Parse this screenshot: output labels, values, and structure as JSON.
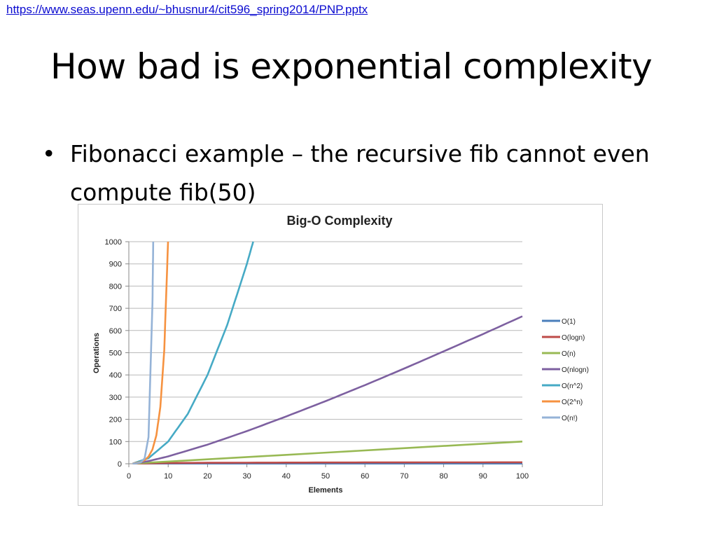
{
  "header": {
    "source_link": "https://www.seas.upenn.edu/~bhusnur4/cit596_spring2014/PNP.pptx"
  },
  "slide": {
    "title": "How bad is exponential complexity",
    "bullets": [
      {
        "marker": "•",
        "text": "Fibonacci example – the recursive fib cannot even compute fib(50)"
      }
    ]
  },
  "chart_data": {
    "type": "line",
    "title": "Big-O Complexity",
    "xlabel": "Elements",
    "ylabel": "Operations",
    "xlim": [
      0,
      100
    ],
    "ylim": [
      0,
      1000
    ],
    "xticks": [
      0,
      10,
      20,
      30,
      40,
      50,
      60,
      70,
      80,
      90,
      100
    ],
    "yticks": [
      0,
      100,
      200,
      300,
      400,
      500,
      600,
      700,
      800,
      900,
      1000
    ],
    "grid": true,
    "legend_position": "right",
    "series": [
      {
        "name": "O(1)",
        "color": "#4a7ebb",
        "x": [
          1,
          100
        ],
        "y": [
          1,
          1
        ]
      },
      {
        "name": "O(logn)",
        "color": "#be4b48",
        "x": [
          1,
          10,
          20,
          40,
          60,
          80,
          100
        ],
        "y": [
          0,
          3.3,
          4.3,
          5.3,
          5.9,
          6.3,
          6.6
        ]
      },
      {
        "name": "O(n)",
        "color": "#98b954",
        "x": [
          1,
          100
        ],
        "y": [
          1,
          100
        ]
      },
      {
        "name": "O(nlogn)",
        "color": "#7d60a0",
        "x": [
          1,
          5,
          10,
          20,
          30,
          40,
          50,
          60,
          70,
          80,
          90,
          100
        ],
        "y": [
          0,
          12,
          33,
          86,
          147,
          213,
          282,
          354,
          429,
          506,
          584,
          664
        ]
      },
      {
        "name": "O(n^2)",
        "color": "#46aac5",
        "x": [
          1,
          5,
          10,
          15,
          20,
          25,
          30,
          31.6
        ],
        "y": [
          1,
          25,
          100,
          225,
          400,
          625,
          900,
          1000
        ]
      },
      {
        "name": "O(2^n)",
        "color": "#f69240",
        "x": [
          1,
          2,
          3,
          4,
          5,
          6,
          7,
          8,
          9,
          9.97
        ],
        "y": [
          2,
          4,
          8,
          16,
          32,
          64,
          128,
          256,
          512,
          1000
        ]
      },
      {
        "name": "O(n!)",
        "color": "#95b3d7",
        "x": [
          1,
          2,
          3,
          4,
          5,
          6,
          6.2
        ],
        "y": [
          1,
          2,
          6,
          24,
          120,
          720,
          1000
        ]
      }
    ]
  }
}
